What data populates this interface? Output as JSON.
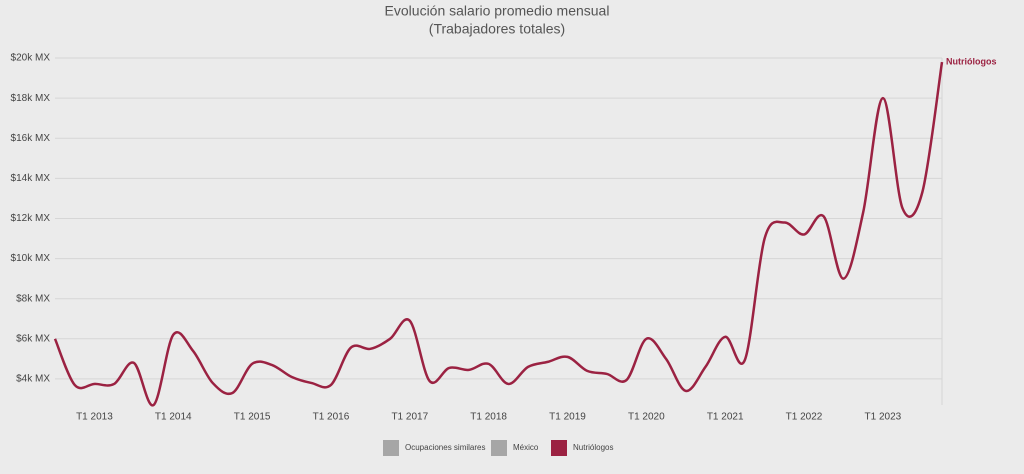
{
  "chart_data": {
    "type": "line",
    "title": "Evolución salario promedio mensual",
    "subtitle": "(Trabajadores totales)",
    "categories": [
      null,
      null,
      "T1 2013",
      null,
      null,
      null,
      "T1 2014",
      null,
      null,
      null,
      "T1 2015",
      null,
      null,
      null,
      "T1 2016",
      null,
      null,
      null,
      "T1 2017",
      null,
      null,
      null,
      "T1 2018",
      null,
      null,
      null,
      "T1 2019",
      null,
      null,
      null,
      "T1 2020",
      null,
      null,
      null,
      "T1 2021",
      null,
      null,
      null,
      "T1 2022",
      null,
      null,
      null,
      "T1 2023",
      null,
      null,
      null
    ],
    "series": [
      {
        "name": "Nutriólogos",
        "color": "#9b2242",
        "values": [
          6000,
          3700,
          3750,
          3750,
          4800,
          2700,
          6200,
          5400,
          3800,
          3300,
          4750,
          4700,
          4100,
          3800,
          3700,
          5550,
          5500,
          6000,
          6900,
          3900,
          4550,
          4450,
          4750,
          3750,
          4600,
          4850,
          5100,
          4400,
          4250,
          3950,
          6000,
          5000,
          3400,
          4600,
          6100,
          4950,
          11000,
          11800,
          11200,
          12100,
          9000,
          12300,
          18000,
          12500,
          13300,
          19800
        ]
      }
    ],
    "legend": [
      {
        "name": "Ocupaciones similares",
        "color": "#a6a6a6"
      },
      {
        "name": "México",
        "color": "#a6a6a6"
      },
      {
        "name": "Nutriólogos",
        "color": "#9b2242"
      }
    ],
    "ylim": [
      2700,
      20000
    ],
    "yticks": [
      {
        "value": 4000,
        "label": "$4k MX"
      },
      {
        "value": 6000,
        "label": "$6k MX"
      },
      {
        "value": 8000,
        "label": "$8k MX"
      },
      {
        "value": 10000,
        "label": "$10k MX"
      },
      {
        "value": 12000,
        "label": "$12k MX"
      },
      {
        "value": 14000,
        "label": "$14k MX"
      },
      {
        "value": 16000,
        "label": "$16k MX"
      },
      {
        "value": 18000,
        "label": "$18k MX"
      },
      {
        "value": 20000,
        "label": "$20k MX"
      }
    ],
    "grid": true
  }
}
